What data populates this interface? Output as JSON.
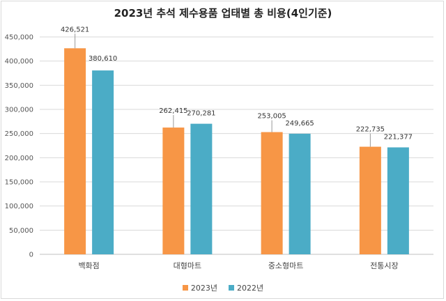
{
  "chart_data": {
    "type": "bar",
    "title": "2023년 추석 제수용품 업태별 총 비용(4인기준)",
    "categories": [
      "백화점",
      "대형마트",
      "중소형마트",
      "전통시장"
    ],
    "series": [
      {
        "name": "2023년",
        "values": [
          426521,
          262415,
          253005,
          222735
        ],
        "color": "#f79646"
      },
      {
        "name": "2022년",
        "values": [
          380610,
          270281,
          249665,
          221377
        ],
        "color": "#4bacc6"
      }
    ],
    "ylim": [
      0,
      450000
    ],
    "yticks": [
      0,
      50000,
      100000,
      150000,
      200000,
      250000,
      300000,
      350000,
      400000,
      450000
    ],
    "ytick_labels": [
      "0",
      "50,000",
      "100,000",
      "150,000",
      "200,000",
      "250,000",
      "300,000",
      "350,000",
      "400,000",
      "450,000"
    ],
    "data_labels": [
      [
        "426,521",
        "262,415",
        "253,005",
        "222,735"
      ],
      [
        "380,610",
        "270,281",
        "249,665",
        "221,377"
      ]
    ],
    "legend_position": "bottom",
    "grid": true
  }
}
